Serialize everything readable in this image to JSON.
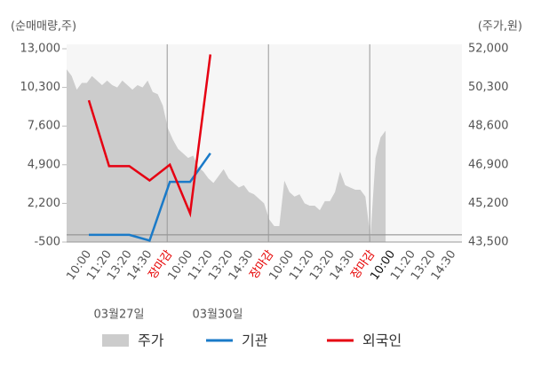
{
  "chart_data": {
    "type": "line",
    "y_axis_label": "(순매매량,주)",
    "y2_axis_label": "(주가,원)",
    "categories": [
      "10:00",
      "11:20",
      "13:20",
      "14:30",
      "장마감",
      "10:00",
      "11:20",
      "13:20",
      "14:30",
      "장마감",
      "10:00",
      "11:20",
      "13:20",
      "14:30",
      "장마감",
      "10:00",
      "11:20",
      "13:20",
      "14:30"
    ],
    "category_colors": [
      "#555",
      "#555",
      "#555",
      "#555",
      "#e60000",
      "#555",
      "#555",
      "#555",
      "#555",
      "#e60000",
      "#555",
      "#555",
      "#555",
      "#555",
      "#e60000",
      "#111",
      "#555",
      "#555",
      "#555"
    ],
    "date_labels": [
      "03월27일",
      "03월30일"
    ],
    "ylim": [
      -500,
      13000
    ],
    "yticks": [
      {
        "value": 13000,
        "label": "13,000"
      },
      {
        "value": 10300,
        "label": "10,300"
      },
      {
        "value": 7600,
        "label": "7,600"
      },
      {
        "value": 4900,
        "label": "4,900"
      },
      {
        "value": 2200,
        "label": "2,200"
      },
      -500
    ],
    "y2lim": [
      43500,
      52000
    ],
    "y2ticks": [
      {
        "value": 52000,
        "label": "52,000"
      },
      {
        "value": 50300,
        "label": "50,300"
      },
      {
        "value": 48600,
        "label": "48,600"
      },
      {
        "value": 46900,
        "label": "46,900"
      },
      {
        "value": 45200,
        "label": "45,200"
      },
      {
        "value": 43500,
        "label": "43,500"
      }
    ],
    "price": {
      "name": "주가",
      "color": "#cccccc",
      "axis": "y2",
      "values": [
        51100,
        50800,
        50200,
        50500,
        50500,
        50800,
        50600,
        50400,
        50600,
        50400,
        50300,
        50600,
        50400,
        50200,
        50400,
        50300,
        50600,
        50100,
        50000,
        49500,
        48500,
        48000,
        47600,
        47400,
        47200,
        47300,
        46800,
        46600,
        46300,
        46100,
        46400,
        46700,
        46300,
        46100,
        45900,
        46000,
        45700,
        45600,
        45400,
        45200,
        44500,
        44200,
        44200,
        46200,
        45700,
        45500,
        45600,
        45200,
        45100,
        45100,
        44900,
        45300,
        45300,
        45700,
        46600,
        46000,
        45900,
        45800,
        45800,
        45500,
        43700,
        47200,
        48100,
        48400
      ]
    },
    "series": [
      {
        "name": "기관",
        "color": "#1a7ac8",
        "values": [
          0,
          0,
          0,
          -400,
          3700,
          3700,
          5700,
          null,
          null,
          null,
          null,
          null,
          null,
          null,
          null,
          null,
          null,
          null,
          null
        ]
      },
      {
        "name": "외국인",
        "color": "#e60012",
        "values": [
          9400,
          4800,
          4800,
          3800,
          4900,
          1500,
          12600,
          null,
          null,
          null,
          null,
          null,
          null,
          null,
          null,
          null,
          null,
          null,
          null
        ]
      }
    ]
  }
}
